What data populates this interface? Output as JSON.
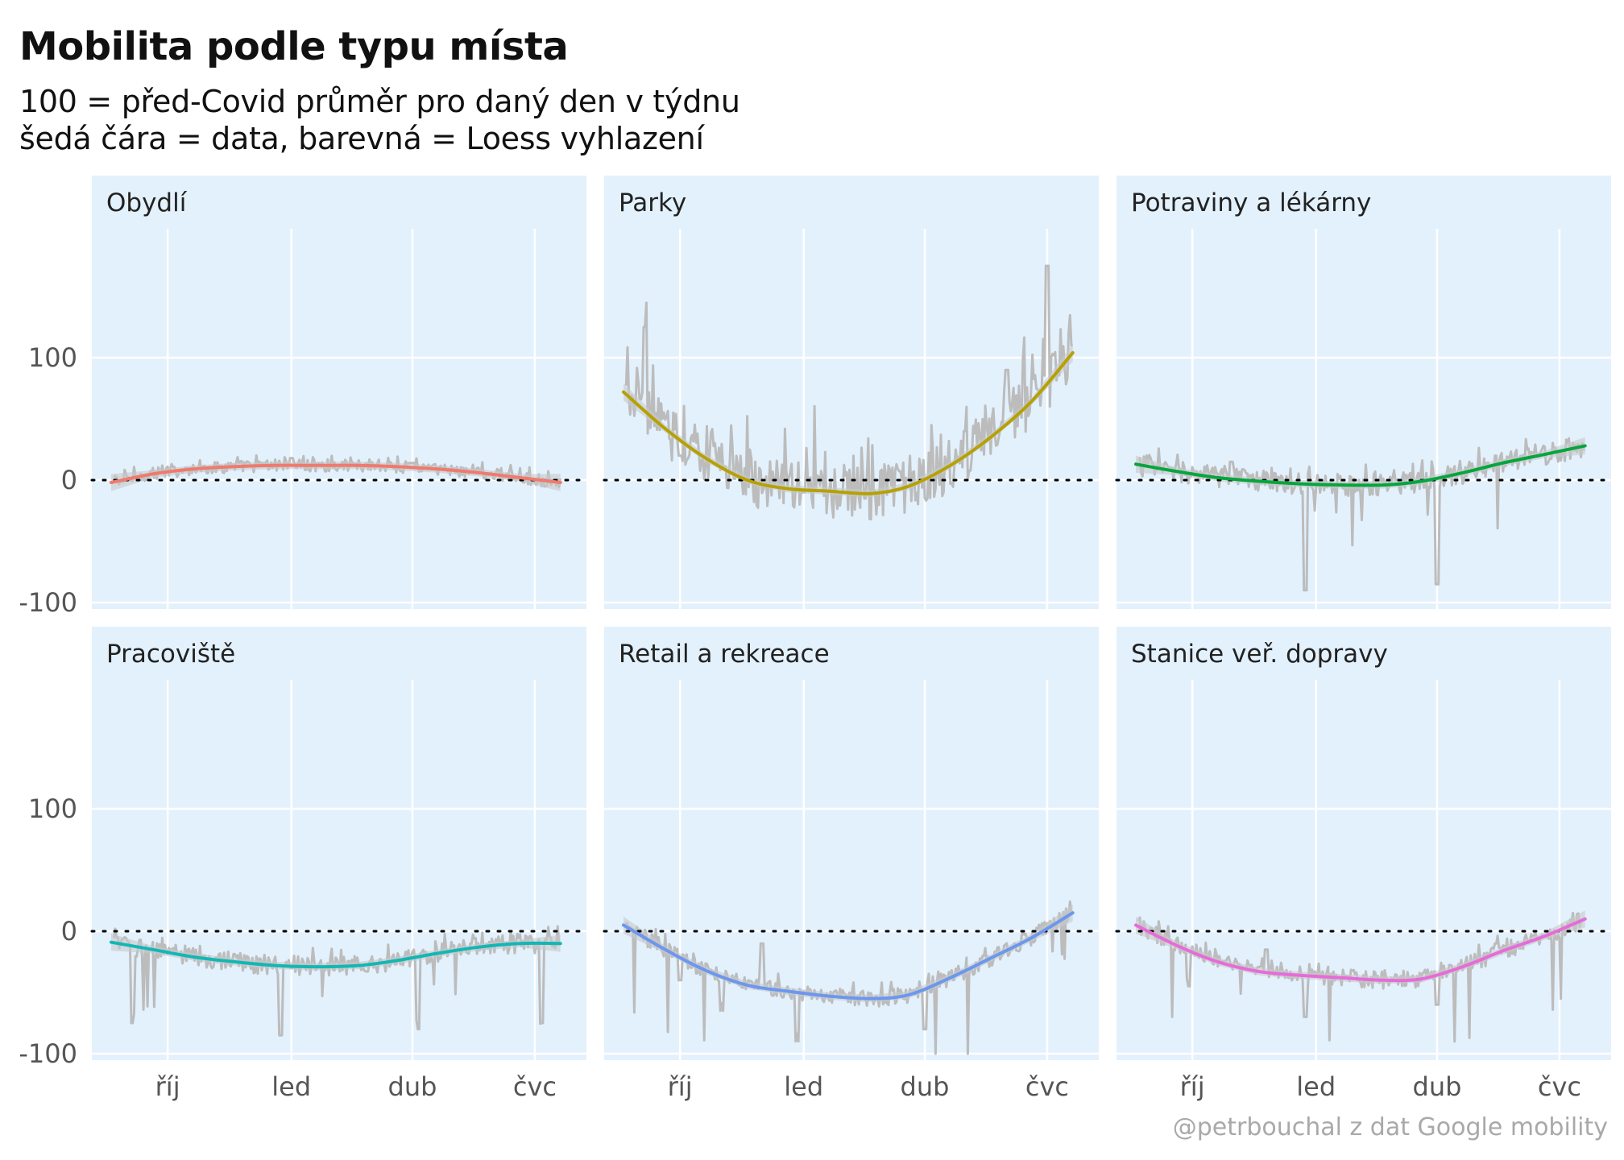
{
  "title": "Mobilita podle typu místa",
  "subtitle_lines": [
    "100 = před-Covid průměr pro daný den v týdnu",
    "šedá čára = data, barevná = Loess vyhlazení"
  ],
  "caption": "@petrbouchal z dat Google mobility",
  "colors": {
    "panel_bg": "#e3f1fd",
    "grid": "#ffffff",
    "raw_line": "#bcbcbc",
    "band": "#c7c9cc",
    "tick_text": "#555555",
    "strip_text": "#222222"
  },
  "chart_data": [
    {
      "type": "line",
      "panel": "Obydlí",
      "color": "#ef7a6d",
      "xlim": [
        "2020-08-20",
        "2021-07-25"
      ],
      "ylim": [
        -100,
        200
      ],
      "x_ticks": [
        {
          "date": "2020-10-01",
          "label": "říj"
        },
        {
          "date": "2021-01-01",
          "label": "led"
        },
        {
          "date": "2021-04-01",
          "label": "dub"
        },
        {
          "date": "2021-07-01",
          "label": "čvc"
        }
      ],
      "y_ticks": [
        -100,
        0,
        100
      ],
      "reference_line": 0,
      "series": [
        {
          "values_kind": "raw",
          "x": [
            "2020-08-20",
            "2020-10-15",
            "2020-12-10",
            "2021-01-01",
            "2021-02-15",
            "2021-04-01",
            "2021-05-15",
            "2021-07-15"
          ],
          "y": [
            0,
            10,
            14,
            18,
            14,
            14,
            8,
            0
          ]
        },
        {
          "values_kind": "smooth",
          "x": [
            "2020-08-20",
            "2020-09-20",
            "2020-10-20",
            "2020-11-20",
            "2020-12-20",
            "2021-01-20",
            "2021-02-20",
            "2021-03-20",
            "2021-04-20",
            "2021-05-20",
            "2021-06-20",
            "2021-07-20"
          ],
          "y": [
            -2,
            5,
            9,
            11,
            12,
            12,
            12,
            11,
            9,
            6,
            2,
            -2
          ]
        }
      ]
    },
    {
      "type": "line",
      "panel": "Parky",
      "color": "#b6a105",
      "xlim": [
        "2020-08-20",
        "2021-07-25"
      ],
      "ylim": [
        -100,
        200
      ],
      "x_ticks": [
        {
          "date": "2020-10-01",
          "label": "říj"
        },
        {
          "date": "2021-01-01",
          "label": "led"
        },
        {
          "date": "2021-04-01",
          "label": "dub"
        },
        {
          "date": "2021-07-01",
          "label": "čvc"
        }
      ],
      "y_ticks": [
        -100,
        0,
        100
      ],
      "reference_line": 0,
      "series": [
        {
          "values_kind": "raw",
          "x": [
            "2020-08-20",
            "2020-09-05",
            "2020-10-01",
            "2020-11-15",
            "2021-01-01",
            "2021-02-15",
            "2021-03-20",
            "2021-05-01",
            "2021-06-01",
            "2021-07-01",
            "2021-07-20"
          ],
          "y": [
            70,
            125,
            20,
            0,
            -10,
            -15,
            0,
            40,
            90,
            175,
            110
          ]
        },
        {
          "values_kind": "smooth",
          "x": [
            "2020-08-20",
            "2020-09-20",
            "2020-10-20",
            "2020-11-20",
            "2020-12-20",
            "2021-01-20",
            "2021-02-20",
            "2021-03-20",
            "2021-04-20",
            "2021-05-20",
            "2021-06-20",
            "2021-07-20"
          ],
          "y": [
            72,
            42,
            18,
            0,
            -7,
            -9,
            -11,
            -5,
            12,
            35,
            65,
            104
          ]
        }
      ]
    },
    {
      "type": "line",
      "panel": "Potraviny a lékárny",
      "color": "#06a53e",
      "xlim": [
        "2020-08-20",
        "2021-07-25"
      ],
      "ylim": [
        -100,
        200
      ],
      "x_ticks": [
        {
          "date": "2020-10-01",
          "label": "říj"
        },
        {
          "date": "2021-01-01",
          "label": "led"
        },
        {
          "date": "2021-04-01",
          "label": "dub"
        },
        {
          "date": "2021-07-01",
          "label": "čvc"
        }
      ],
      "y_ticks": [
        -100,
        0,
        100
      ],
      "reference_line": 0,
      "series": [
        {
          "values_kind": "raw",
          "x": [
            "2020-08-20",
            "2020-09-15",
            "2020-10-30",
            "2020-12-24",
            "2021-01-15",
            "2021-03-01",
            "2021-04-01",
            "2021-05-15",
            "2021-07-20"
          ],
          "y": [
            12,
            10,
            15,
            -90,
            -5,
            0,
            -85,
            20,
            25
          ]
        },
        {
          "values_kind": "smooth",
          "x": [
            "2020-08-20",
            "2020-09-20",
            "2020-10-20",
            "2020-11-20",
            "2020-12-20",
            "2021-01-20",
            "2021-02-20",
            "2021-03-20",
            "2021-04-20",
            "2021-05-20",
            "2021-06-20",
            "2021-07-20"
          ],
          "y": [
            13,
            7,
            2,
            -1,
            -3,
            -4,
            -4,
            -1,
            6,
            14,
            21,
            28
          ]
        }
      ]
    },
    {
      "type": "line",
      "panel": "Pracoviště",
      "color": "#12b7b4",
      "xlim": [
        "2020-08-20",
        "2021-07-25"
      ],
      "ylim": [
        -100,
        200
      ],
      "x_ticks": [
        {
          "date": "2020-10-01",
          "label": "říj"
        },
        {
          "date": "2021-01-01",
          "label": "led"
        },
        {
          "date": "2021-04-01",
          "label": "dub"
        },
        {
          "date": "2021-07-01",
          "label": "čvc"
        }
      ],
      "y_ticks": [
        -100,
        0,
        100
      ],
      "reference_line": 0,
      "series": [
        {
          "values_kind": "raw",
          "x": [
            "2020-08-20",
            "2020-09-05",
            "2020-10-28",
            "2020-12-24",
            "2021-01-01",
            "2021-04-05",
            "2021-05-15",
            "2021-07-06",
            "2021-07-20"
          ],
          "y": [
            -10,
            -75,
            -20,
            -85,
            -30,
            -80,
            -10,
            -75,
            -10
          ]
        },
        {
          "values_kind": "smooth",
          "x": [
            "2020-08-20",
            "2020-09-20",
            "2020-10-20",
            "2020-11-20",
            "2020-12-20",
            "2021-01-20",
            "2021-02-20",
            "2021-03-20",
            "2021-04-20",
            "2021-05-20",
            "2021-06-20",
            "2021-07-20"
          ],
          "y": [
            -9,
            -15,
            -21,
            -25,
            -28,
            -29,
            -28,
            -24,
            -18,
            -13,
            -10,
            -10
          ]
        }
      ]
    },
    {
      "type": "line",
      "panel": "Retail a rekreace",
      "color": "#6c97ee",
      "xlim": [
        "2020-08-20",
        "2021-07-25"
      ],
      "ylim": [
        -100,
        200
      ],
      "x_ticks": [
        {
          "date": "2020-10-01",
          "label": "říj"
        },
        {
          "date": "2021-01-01",
          "label": "led"
        },
        {
          "date": "2021-04-01",
          "label": "dub"
        },
        {
          "date": "2021-07-01",
          "label": "čvc"
        }
      ],
      "y_ticks": [
        -100,
        0,
        100
      ],
      "reference_line": 0,
      "series": [
        {
          "values_kind": "raw",
          "x": [
            "2020-08-20",
            "2020-10-01",
            "2020-11-01",
            "2020-12-01",
            "2020-12-27",
            "2021-02-15",
            "2021-04-01",
            "2021-05-15",
            "2021-07-20"
          ],
          "y": [
            5,
            -40,
            -65,
            -10,
            -90,
            -55,
            -80,
            -20,
            15
          ]
        },
        {
          "values_kind": "smooth",
          "x": [
            "2020-08-20",
            "2020-09-20",
            "2020-10-20",
            "2020-11-20",
            "2020-12-20",
            "2021-01-20",
            "2021-02-20",
            "2021-03-20",
            "2021-04-20",
            "2021-05-20",
            "2021-06-20",
            "2021-07-20"
          ],
          "y": [
            5,
            -15,
            -32,
            -44,
            -49,
            -53,
            -55,
            -52,
            -38,
            -22,
            -5,
            15
          ]
        }
      ]
    },
    {
      "type": "line",
      "panel": "Stanice veř. dopravy",
      "color": "#e76bd8",
      "xlim": [
        "2020-08-20",
        "2021-07-25"
      ],
      "ylim": [
        -100,
        200
      ],
      "x_ticks": [
        {
          "date": "2020-10-01",
          "label": "říj"
        },
        {
          "date": "2021-01-01",
          "label": "led"
        },
        {
          "date": "2021-04-01",
          "label": "dub"
        },
        {
          "date": "2021-07-01",
          "label": "čvc"
        }
      ],
      "y_ticks": [
        -100,
        0,
        100
      ],
      "reference_line": 0,
      "series": [
        {
          "values_kind": "raw",
          "x": [
            "2020-08-20",
            "2020-09-28",
            "2020-11-25",
            "2020-12-24",
            "2021-02-01",
            "2021-04-01",
            "2021-05-15",
            "2021-07-20"
          ],
          "y": [
            5,
            -45,
            -15,
            -70,
            -40,
            -60,
            -10,
            10
          ]
        },
        {
          "values_kind": "smooth",
          "x": [
            "2020-08-20",
            "2020-09-20",
            "2020-10-20",
            "2020-11-20",
            "2020-12-20",
            "2021-01-20",
            "2021-02-20",
            "2021-03-20",
            "2021-04-20",
            "2021-05-20",
            "2021-06-20",
            "2021-07-20"
          ],
          "y": [
            5,
            -12,
            -25,
            -33,
            -36,
            -38,
            -40,
            -39,
            -29,
            -16,
            -4,
            10
          ]
        }
      ]
    }
  ]
}
